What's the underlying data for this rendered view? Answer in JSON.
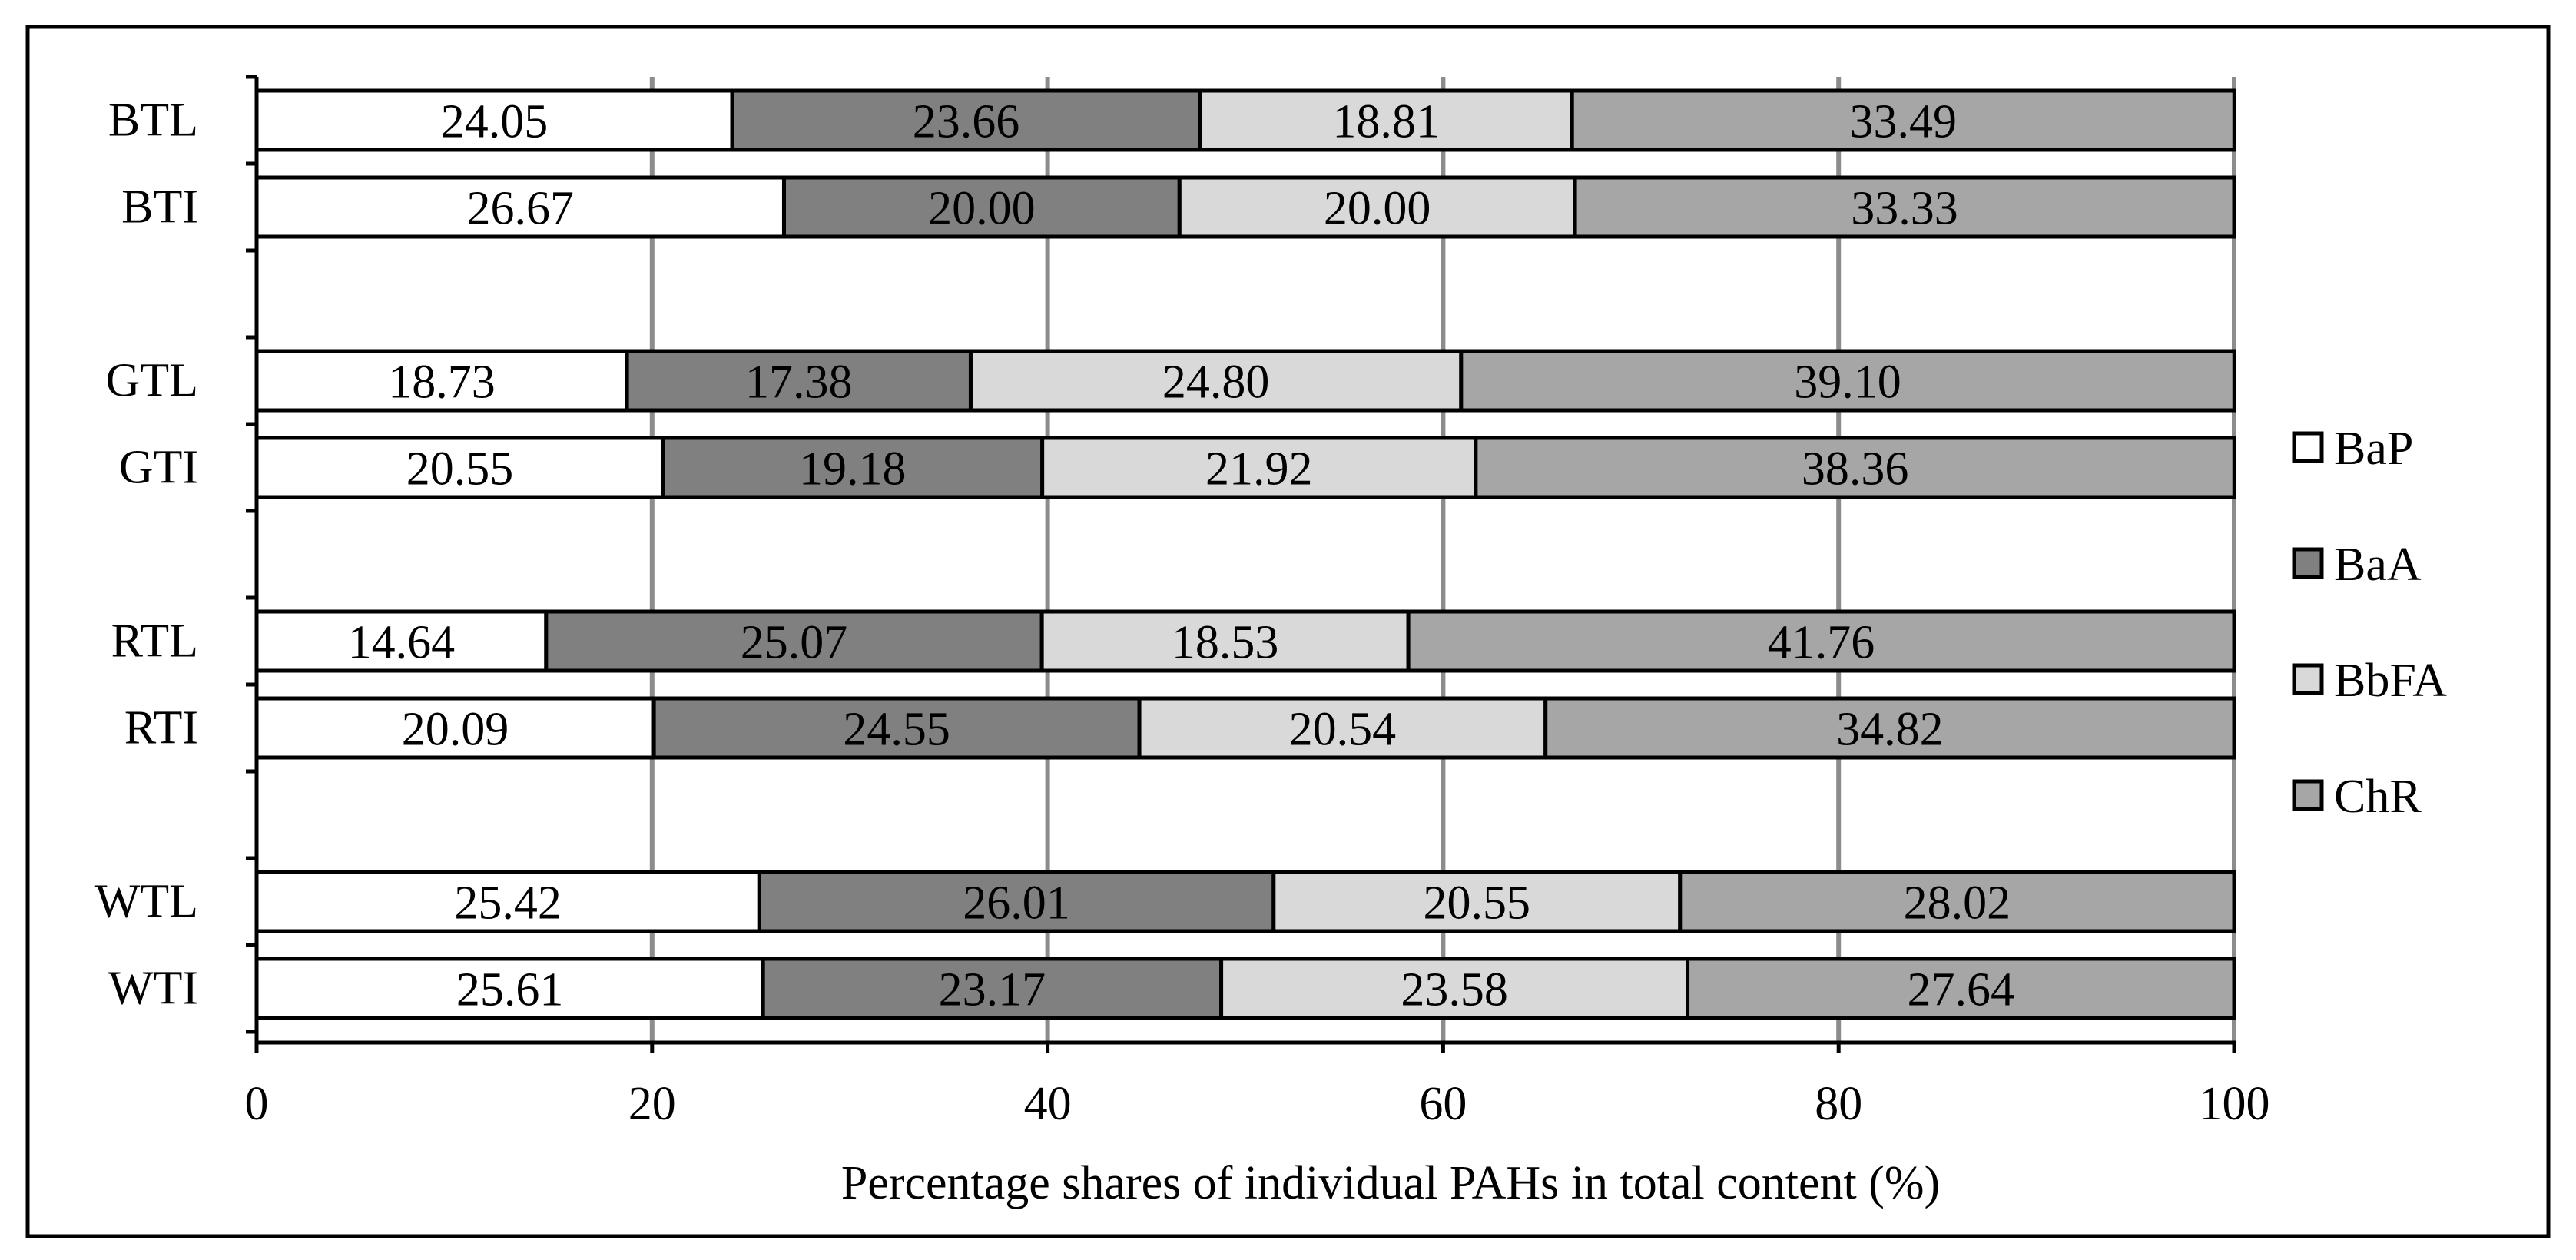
{
  "chart_data": {
    "type": "bar",
    "orientation": "horizontal",
    "stacked": true,
    "categories": [
      "BTL",
      "BTI",
      "GTL",
      "GTI",
      "RTL",
      "RTI",
      "WTL",
      "WTI"
    ],
    "series": [
      {
        "name": "BaP",
        "color": "#ffffff",
        "values": [
          24.05,
          26.67,
          18.73,
          20.55,
          14.64,
          20.09,
          25.42,
          25.61
        ]
      },
      {
        "name": "BaA",
        "color": "#808080",
        "values": [
          23.66,
          20.0,
          17.38,
          19.18,
          25.07,
          24.55,
          26.01,
          23.17
        ]
      },
      {
        "name": "BbFA",
        "color": "#d9d9d9",
        "values": [
          18.81,
          20.0,
          24.8,
          21.92,
          18.53,
          20.54,
          20.55,
          23.58
        ]
      },
      {
        "name": "ChR",
        "color": "#a6a6a6",
        "values": [
          33.49,
          33.33,
          39.1,
          38.36,
          41.76,
          34.82,
          28.02,
          27.64
        ]
      }
    ],
    "labels": [
      [
        "24.05",
        "23.66",
        "18.81",
        "33.49"
      ],
      [
        "26.67",
        "20.00",
        "20.00",
        "33.33"
      ],
      [
        "18.73",
        "17.38",
        "24.80",
        "39.10"
      ],
      [
        "20.55",
        "19.18",
        "21.92",
        "38.36"
      ],
      [
        "14.64",
        "25.07",
        "18.53",
        "41.76"
      ],
      [
        "20.09",
        "24.55",
        "20.54",
        "34.82"
      ],
      [
        "25.42",
        "26.01",
        "20.55",
        "28.02"
      ],
      [
        "25.61",
        "23.17",
        "23.58",
        "27.64"
      ]
    ],
    "xlabel": "Percentage shares of individual PAHs in total content (%)",
    "ylabel": "",
    "xlim": [
      0,
      100
    ],
    "xticks": [
      "0",
      "20",
      "40",
      "60",
      "80",
      "100"
    ],
    "grid": "vertical",
    "legend": "right"
  }
}
